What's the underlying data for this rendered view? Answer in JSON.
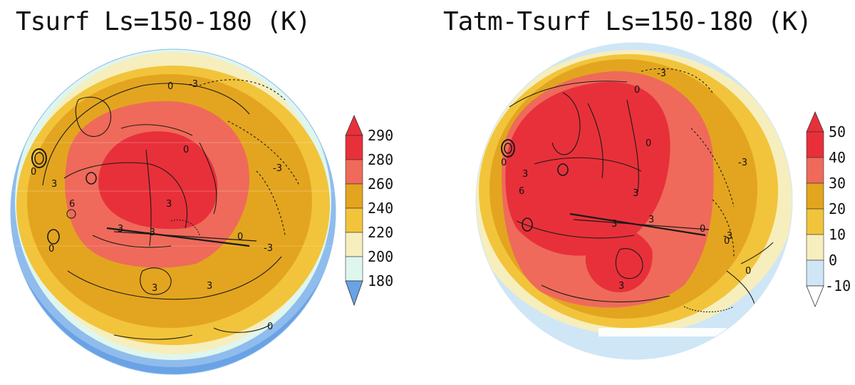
{
  "panels": [
    {
      "title": "Tsurf  Ls=150-180 (K)",
      "colorbar": {
        "labels": [
          "290",
          "280",
          "260",
          "240",
          "220",
          "200",
          "180"
        ],
        "colors": [
          "#e8303a",
          "#ef6a5a",
          "#e3a51f",
          "#f2c43b",
          "#f6eebc",
          "#dff6ee",
          "#8fbcec",
          "#6aa2e6"
        ],
        "top_arrow_color": "#e8303a",
        "bottom_arrow_color": "#6aa2e6"
      },
      "contour_labels": [
        "0",
        "-3",
        "0",
        "3",
        "6",
        "0",
        "3",
        "3",
        "-3",
        "0",
        "-3",
        "0",
        "3",
        "3",
        "0",
        "-3"
      ]
    },
    {
      "title": "Tatm-Tsurf  Ls=150-180 (K)",
      "colorbar": {
        "labels": [
          "50",
          "40",
          "30",
          "20",
          "10",
          "0",
          "-10"
        ],
        "colors": [
          "#e8303a",
          "#ef6a5a",
          "#e3a51f",
          "#f2c43b",
          "#f6eebc",
          "#cfe6f6",
          "#ffffff"
        ],
        "top_arrow_color": "#e8303a",
        "bottom_arrow_color": "#ffffff"
      },
      "contour_labels": [
        "-3",
        "0",
        "0",
        "3",
        "6",
        "3",
        "3",
        "3",
        "0",
        "-3",
        "0",
        "-3",
        "3",
        "0",
        "0"
      ]
    }
  ]
}
